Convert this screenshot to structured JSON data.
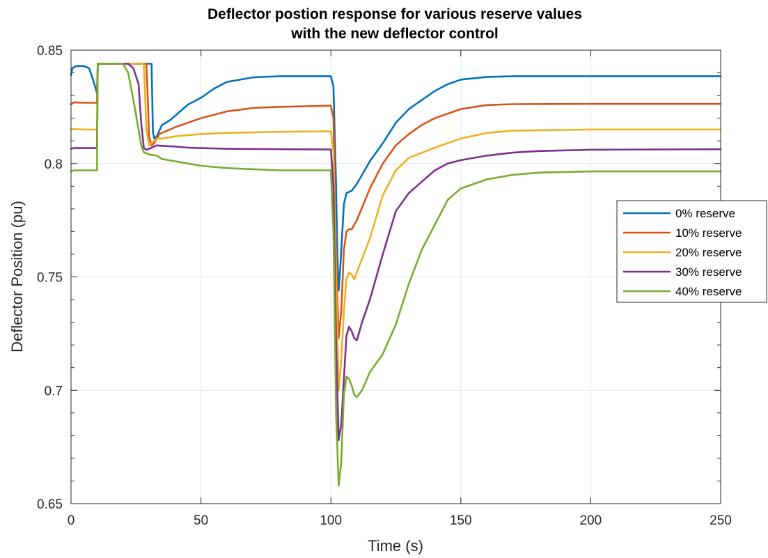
{
  "chart_data": {
    "type": "line",
    "title": [
      "Deflector postion response for various reserve values",
      "with the new deflector control"
    ],
    "xlabel": "Time (s)",
    "ylabel": "Deflector Position (pu)",
    "xlim": [
      0,
      250
    ],
    "ylim": [
      0.65,
      0.85
    ],
    "xticks": [
      0,
      50,
      100,
      150,
      200,
      250
    ],
    "xtick_labels": [
      "0",
      "50",
      "100",
      "150",
      "200",
      "250"
    ],
    "yticks": [
      0.65,
      0.7,
      0.75,
      0.8,
      0.85
    ],
    "ytick_labels": [
      "0.65",
      "0.7",
      "0.75",
      "0.8",
      "0.85"
    ],
    "yminor_step": 0.01,
    "grid": true,
    "legend_position": "right",
    "series": [
      {
        "name": "0% reserve",
        "color": "#0072BD",
        "points": [
          [
            0,
            0.839
          ],
          [
            0.5,
            0.842
          ],
          [
            2,
            0.843
          ],
          [
            5,
            0.843
          ],
          [
            7,
            0.842
          ],
          [
            9,
            0.835
          ],
          [
            10,
            0.831
          ],
          [
            10.3,
            0.844
          ],
          [
            15,
            0.844
          ],
          [
            25,
            0.844
          ],
          [
            30,
            0.844
          ],
          [
            31,
            0.844
          ],
          [
            31.5,
            0.814
          ],
          [
            32,
            0.811
          ],
          [
            33,
            0.812
          ],
          [
            35,
            0.817
          ],
          [
            38,
            0.819
          ],
          [
            40,
            0.821
          ],
          [
            45,
            0.826
          ],
          [
            50,
            0.829
          ],
          [
            55,
            0.833
          ],
          [
            60,
            0.836
          ],
          [
            70,
            0.838
          ],
          [
            80,
            0.8385
          ],
          [
            100,
            0.8385
          ],
          [
            101,
            0.834
          ],
          [
            102,
            0.79
          ],
          [
            102.5,
            0.76
          ],
          [
            103,
            0.744
          ],
          [
            103.5,
            0.752
          ],
          [
            105,
            0.782
          ],
          [
            106,
            0.787
          ],
          [
            108,
            0.788
          ],
          [
            110,
            0.791
          ],
          [
            115,
            0.801
          ],
          [
            120,
            0.809
          ],
          [
            125,
            0.818
          ],
          [
            130,
            0.824
          ],
          [
            135,
            0.828
          ],
          [
            140,
            0.832
          ],
          [
            145,
            0.835
          ],
          [
            150,
            0.837
          ],
          [
            160,
            0.8382
          ],
          [
            170,
            0.8385
          ],
          [
            200,
            0.8385
          ],
          [
            250,
            0.8385
          ]
        ]
      },
      {
        "name": "10% reserve",
        "color": "#D95319",
        "points": [
          [
            0,
            0.826
          ],
          [
            1,
            0.827
          ],
          [
            5,
            0.8268
          ],
          [
            10,
            0.8268
          ],
          [
            10.3,
            0.844
          ],
          [
            15,
            0.844
          ],
          [
            25,
            0.844
          ],
          [
            29,
            0.844
          ],
          [
            29.5,
            0.83
          ],
          [
            30,
            0.812
          ],
          [
            31,
            0.808
          ],
          [
            32,
            0.809
          ],
          [
            34,
            0.813
          ],
          [
            36,
            0.814
          ],
          [
            40,
            0.816
          ],
          [
            45,
            0.818
          ],
          [
            50,
            0.82
          ],
          [
            60,
            0.823
          ],
          [
            70,
            0.8245
          ],
          [
            80,
            0.825
          ],
          [
            100,
            0.8255
          ],
          [
            101,
            0.82
          ],
          [
            102,
            0.76
          ],
          [
            103,
            0.723
          ],
          [
            104,
            0.735
          ],
          [
            105,
            0.762
          ],
          [
            106,
            0.77
          ],
          [
            107,
            0.771
          ],
          [
            108,
            0.771
          ],
          [
            110,
            0.775
          ],
          [
            115,
            0.789
          ],
          [
            120,
            0.8
          ],
          [
            125,
            0.808
          ],
          [
            130,
            0.813
          ],
          [
            135,
            0.817
          ],
          [
            140,
            0.82
          ],
          [
            150,
            0.824
          ],
          [
            160,
            0.8258
          ],
          [
            170,
            0.8262
          ],
          [
            200,
            0.8263
          ],
          [
            250,
            0.8263
          ]
        ]
      },
      {
        "name": "20% reserve",
        "color": "#EDB120",
        "points": [
          [
            0,
            0.815
          ],
          [
            1,
            0.8152
          ],
          [
            5,
            0.815
          ],
          [
            10,
            0.815
          ],
          [
            10.3,
            0.844
          ],
          [
            15,
            0.844
          ],
          [
            25,
            0.844
          ],
          [
            28,
            0.844
          ],
          [
            28.5,
            0.83
          ],
          [
            29,
            0.815
          ],
          [
            30,
            0.808
          ],
          [
            31,
            0.809
          ],
          [
            33,
            0.811
          ],
          [
            35,
            0.811
          ],
          [
            40,
            0.812
          ],
          [
            45,
            0.8125
          ],
          [
            50,
            0.813
          ],
          [
            60,
            0.8135
          ],
          [
            80,
            0.814
          ],
          [
            100,
            0.8142
          ],
          [
            101,
            0.805
          ],
          [
            102,
            0.75
          ],
          [
            103,
            0.7
          ],
          [
            104,
            0.713
          ],
          [
            105,
            0.735
          ],
          [
            106,
            0.749
          ],
          [
            107,
            0.752
          ],
          [
            108,
            0.751
          ],
          [
            109,
            0.749
          ],
          [
            110,
            0.752
          ],
          [
            115,
            0.767
          ],
          [
            120,
            0.786
          ],
          [
            125,
            0.797
          ],
          [
            130,
            0.8025
          ],
          [
            140,
            0.807
          ],
          [
            150,
            0.811
          ],
          [
            160,
            0.8135
          ],
          [
            170,
            0.8145
          ],
          [
            200,
            0.815
          ],
          [
            250,
            0.815
          ]
        ]
      },
      {
        "name": "30% reserve",
        "color": "#7E2F8E",
        "points": [
          [
            0,
            0.8065
          ],
          [
            1,
            0.8068
          ],
          [
            5,
            0.8068
          ],
          [
            10,
            0.8068
          ],
          [
            10.3,
            0.844
          ],
          [
            15,
            0.844
          ],
          [
            22,
            0.844
          ],
          [
            24,
            0.842
          ],
          [
            26,
            0.835
          ],
          [
            27,
            0.818
          ],
          [
            28,
            0.807
          ],
          [
            29,
            0.806
          ],
          [
            31,
            0.807
          ],
          [
            33,
            0.808
          ],
          [
            35,
            0.8078
          ],
          [
            40,
            0.8075
          ],
          [
            45,
            0.807
          ],
          [
            50,
            0.8068
          ],
          [
            60,
            0.8065
          ],
          [
            80,
            0.8063
          ],
          [
            100,
            0.8062
          ],
          [
            101,
            0.79
          ],
          [
            102,
            0.72
          ],
          [
            103,
            0.678
          ],
          [
            104,
            0.685
          ],
          [
            105,
            0.705
          ],
          [
            106,
            0.724
          ],
          [
            107,
            0.728
          ],
          [
            108,
            0.726
          ],
          [
            109,
            0.723
          ],
          [
            110,
            0.722
          ],
          [
            112,
            0.73
          ],
          [
            115,
            0.74
          ],
          [
            120,
            0.76
          ],
          [
            125,
            0.779
          ],
          [
            130,
            0.787
          ],
          [
            135,
            0.792
          ],
          [
            140,
            0.797
          ],
          [
            145,
            0.8
          ],
          [
            150,
            0.8015
          ],
          [
            160,
            0.8035
          ],
          [
            170,
            0.8048
          ],
          [
            180,
            0.8055
          ],
          [
            200,
            0.8061
          ],
          [
            250,
            0.8063
          ]
        ]
      },
      {
        "name": "40% reserve",
        "color": "#77AC30",
        "points": [
          [
            0,
            0.7965
          ],
          [
            1,
            0.797
          ],
          [
            5,
            0.797
          ],
          [
            10,
            0.797
          ],
          [
            10.3,
            0.844
          ],
          [
            15,
            0.844
          ],
          [
            20,
            0.844
          ],
          [
            22,
            0.84
          ],
          [
            24,
            0.828
          ],
          [
            26,
            0.815
          ],
          [
            27,
            0.808
          ],
          [
            28,
            0.805
          ],
          [
            30,
            0.804
          ],
          [
            33,
            0.8035
          ],
          [
            35,
            0.802
          ],
          [
            40,
            0.801
          ],
          [
            45,
            0.8
          ],
          [
            50,
            0.799
          ],
          [
            60,
            0.798
          ],
          [
            80,
            0.797
          ],
          [
            100,
            0.797
          ],
          [
            101,
            0.77
          ],
          [
            102,
            0.69
          ],
          [
            103,
            0.658
          ],
          [
            104,
            0.668
          ],
          [
            105,
            0.698
          ],
          [
            106,
            0.706
          ],
          [
            107,
            0.705
          ],
          [
            108,
            0.702
          ],
          [
            109,
            0.698
          ],
          [
            110,
            0.697
          ],
          [
            112,
            0.7
          ],
          [
            115,
            0.708
          ],
          [
            120,
            0.716
          ],
          [
            125,
            0.729
          ],
          [
            130,
            0.747
          ],
          [
            135,
            0.762
          ],
          [
            140,
            0.773
          ],
          [
            145,
            0.784
          ],
          [
            150,
            0.789
          ],
          [
            160,
            0.793
          ],
          [
            170,
            0.795
          ],
          [
            180,
            0.796
          ],
          [
            200,
            0.7965
          ],
          [
            250,
            0.7965
          ]
        ]
      }
    ]
  }
}
